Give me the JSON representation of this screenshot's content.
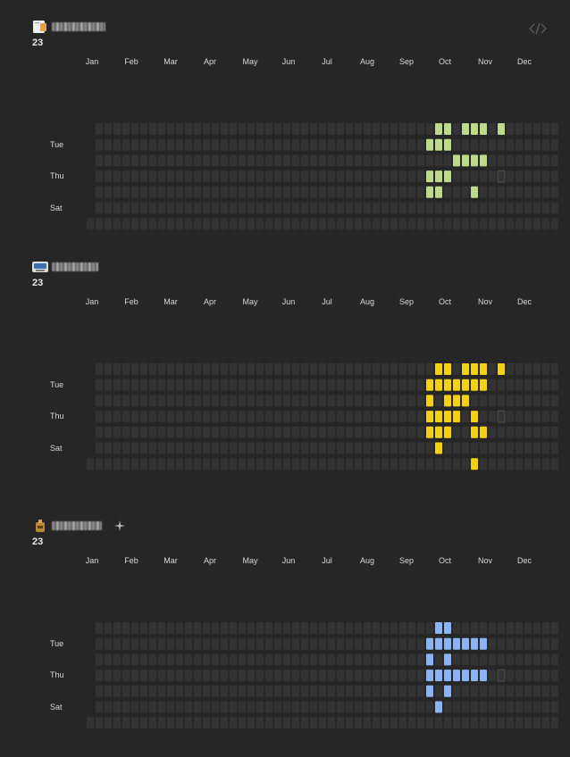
{
  "toolbar": {
    "embed_icon": "code-icon"
  },
  "month_labels": [
    "Jan",
    "Feb",
    "Mar",
    "Apr",
    "May",
    "Jun",
    "Jul",
    "Aug",
    "Sep",
    "Oct",
    "Nov",
    "Dec"
  ],
  "day_labels": [
    "Tue",
    "Thu",
    "Sat"
  ],
  "colors": {
    "background": "#262626",
    "empty_cell": "#333333",
    "green": "#bdd98a",
    "yellow": "#f5d20f",
    "blue": "#8ab4f6"
  },
  "sections": [
    {
      "icon": "notes-app-icon",
      "year": "23",
      "color_key": "green",
      "active_weeks_by_day": [
        [
          39,
          40,
          42,
          43,
          44,
          46
        ],
        [
          38,
          39,
          40
        ],
        [
          41,
          42,
          43,
          44
        ],
        [
          38,
          39,
          40
        ],
        [
          38,
          39,
          43
        ],
        [],
        []
      ]
    },
    {
      "icon": "drive-app-icon",
      "year": "23",
      "color_key": "yellow",
      "active_weeks_by_day": [
        [
          39,
          40,
          42,
          43,
          44,
          46
        ],
        [
          38,
          39,
          40,
          41,
          42,
          43,
          44
        ],
        [
          38,
          40,
          41,
          42
        ],
        [
          38,
          39,
          40,
          41,
          43
        ],
        [
          38,
          39,
          40,
          43,
          44
        ],
        [
          39
        ],
        [
          43
        ]
      ]
    },
    {
      "icon": "bag-app-icon",
      "year": "23",
      "color_key": "blue",
      "active_weeks_by_day": [
        [
          39,
          40
        ],
        [
          38,
          39,
          40,
          41,
          42,
          43,
          44
        ],
        [
          38,
          40
        ],
        [
          38,
          39,
          40,
          41,
          42,
          43,
          44
        ],
        [
          38,
          40
        ],
        [
          39
        ],
        []
      ]
    }
  ]
}
